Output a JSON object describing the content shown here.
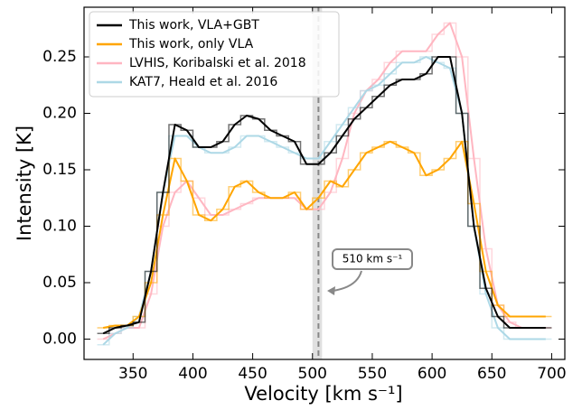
{
  "chart_data": {
    "type": "line",
    "x_label": "Velocity [km s⁻¹]",
    "y_label": "Intensity [K]",
    "x": [
      325,
      335,
      345,
      355,
      365,
      375,
      385,
      395,
      405,
      415,
      425,
      435,
      445,
      455,
      465,
      475,
      485,
      495,
      505,
      515,
      525,
      535,
      545,
      555,
      565,
      575,
      585,
      595,
      605,
      615,
      625,
      635,
      645,
      655,
      665,
      675,
      685,
      695
    ],
    "series": [
      {
        "name": "This work, VLA+GBT",
        "color": "#000000",
        "values": [
          0.005,
          0.01,
          0.012,
          0.015,
          0.06,
          0.13,
          0.19,
          0.185,
          0.17,
          0.17,
          0.175,
          0.19,
          0.198,
          0.195,
          0.185,
          0.18,
          0.175,
          0.155,
          0.155,
          0.165,
          0.18,
          0.195,
          0.205,
          0.215,
          0.225,
          0.23,
          0.23,
          0.235,
          0.25,
          0.25,
          0.2,
          0.1,
          0.045,
          0.02,
          0.01,
          0.01,
          0.01,
          0.01
        ]
      },
      {
        "name": "This work, only VLA",
        "color": "#ffa500",
        "values": [
          0.01,
          0.012,
          0.012,
          0.02,
          0.05,
          0.11,
          0.16,
          0.14,
          0.11,
          0.105,
          0.115,
          0.135,
          0.14,
          0.13,
          0.125,
          0.125,
          0.13,
          0.115,
          0.125,
          0.14,
          0.135,
          0.15,
          0.165,
          0.17,
          0.175,
          0.17,
          0.165,
          0.145,
          0.15,
          0.16,
          0.175,
          0.12,
          0.06,
          0.03,
          0.02,
          0.02,
          0.02,
          0.02
        ]
      },
      {
        "name": "LVHIS, Koribalski et al. 2018",
        "color": "#ffb6c1",
        "values": [
          0,
          0.005,
          0.01,
          0.01,
          0.04,
          0.1,
          0.13,
          0.14,
          0.125,
          0.11,
          0.11,
          0.115,
          0.12,
          0.125,
          0.125,
          0.125,
          0.125,
          0.115,
          0.115,
          0.13,
          0.16,
          0.2,
          0.22,
          0.23,
          0.245,
          0.255,
          0.255,
          0.255,
          0.27,
          0.28,
          0.25,
          0.16,
          0.08,
          0.03,
          0.015,
          0.01,
          0.01,
          0.01
        ]
      },
      {
        "name": "KAT7, Heald et al. 2016",
        "color": "#add8e6",
        "values": [
          -0.005,
          0.005,
          0.01,
          0.02,
          0.06,
          0.13,
          0.18,
          0.18,
          0.17,
          0.165,
          0.165,
          0.17,
          0.18,
          0.18,
          0.175,
          0.17,
          0.165,
          0.16,
          0.16,
          0.175,
          0.19,
          0.205,
          0.22,
          0.225,
          0.235,
          0.245,
          0.245,
          0.25,
          0.245,
          0.24,
          0.2,
          0.1,
          0.04,
          0.01,
          0,
          0,
          0,
          0
        ]
      }
    ],
    "xlim": [
      309,
      711
    ],
    "ylim": [
      -0.018,
      0.294
    ],
    "xticks": [
      350,
      400,
      450,
      500,
      550,
      600,
      650,
      700
    ],
    "yticks": [
      {
        "value": 0,
        "label": "0.00"
      },
      {
        "value": 0.05,
        "label": "0.05"
      },
      {
        "value": 0.1,
        "label": "0.10"
      },
      {
        "value": 0.15,
        "label": "0.15"
      },
      {
        "value": 0.2,
        "label": "0.20"
      },
      {
        "value": 0.25,
        "label": "0.25"
      }
    ],
    "vline": 505,
    "vband": [
      500,
      508
    ],
    "annotation": "510 km s⁻¹",
    "legend": "upper left"
  }
}
